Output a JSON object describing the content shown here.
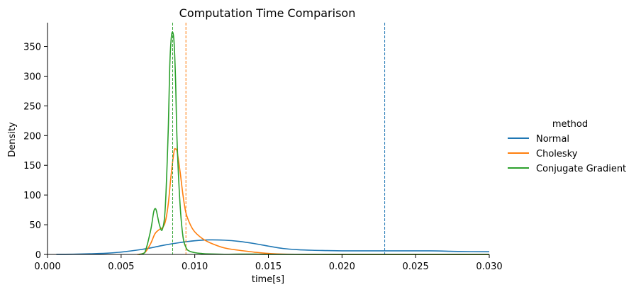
{
  "chart_data": {
    "type": "line",
    "title": "Computation Time Comparison",
    "xlabel": "time[s]",
    "ylabel": "Density",
    "xlim": [
      0.0,
      0.03
    ],
    "ylim": [
      0,
      390
    ],
    "xticks": [
      0.0,
      0.005,
      0.01,
      0.015,
      0.02,
      0.025,
      0.03
    ],
    "xtick_labels": [
      "0.000",
      "0.005",
      "0.010",
      "0.015",
      "0.020",
      "0.025",
      "0.030"
    ],
    "yticks": [
      0,
      50,
      100,
      150,
      200,
      250,
      300,
      350
    ],
    "ytick_labels": [
      "0",
      "50",
      "100",
      "150",
      "200",
      "250",
      "300",
      "350"
    ],
    "grid": false,
    "legend": {
      "title": "method",
      "placement": "right"
    },
    "series": [
      {
        "name": "Normal",
        "color": "#1f77b4",
        "mean": 0.0229,
        "x": [
          0.0006,
          0.002,
          0.004,
          0.005,
          0.006,
          0.007,
          0.008,
          0.009,
          0.01,
          0.011,
          0.012,
          0.013,
          0.014,
          0.015,
          0.016,
          0.017,
          0.018,
          0.019,
          0.02,
          0.022,
          0.024,
          0.026,
          0.028,
          0.03
        ],
        "y": [
          0.2,
          0.5,
          2,
          4,
          7,
          11,
          16,
          20,
          23,
          24.5,
          24,
          22,
          18.5,
          14,
          10,
          8,
          7,
          6.5,
          6,
          6,
          6,
          6,
          5,
          4.5
        ]
      },
      {
        "name": "Cholesky",
        "color": "#ff7f0e",
        "mean": 0.0094,
        "x": [
          0.0061,
          0.0066,
          0.007,
          0.0073,
          0.0076,
          0.0078,
          0.008,
          0.0082,
          0.0084,
          0.0086,
          0.0087,
          0.0088,
          0.009,
          0.0092,
          0.0094,
          0.0097,
          0.01,
          0.0105,
          0.011,
          0.012,
          0.013,
          0.014,
          0.0148,
          0.016,
          0.018,
          0.02,
          0.025,
          0.03
        ],
        "y": [
          0,
          3,
          18,
          35,
          42,
          45,
          55,
          85,
          135,
          174,
          177,
          173,
          140,
          100,
          70,
          50,
          38,
          27,
          20,
          11,
          7,
          4,
          2,
          0.6,
          0.2,
          0.1,
          0.05,
          0.02
        ]
      },
      {
        "name": "Conjugate Gradient",
        "color": "#2ca02c",
        "mean": 0.0085,
        "x": [
          0.0062,
          0.0066,
          0.007,
          0.0072,
          0.0073,
          0.0074,
          0.0076,
          0.0078,
          0.008,
          0.0082,
          0.0083,
          0.0084,
          0.0085,
          0.0086,
          0.0087,
          0.0088,
          0.009,
          0.0092,
          0.0094,
          0.0096,
          0.01,
          0.0105,
          0.011,
          0.012,
          0.013,
          0.014,
          0.015,
          0.02,
          0.03
        ],
        "y": [
          0,
          3,
          40,
          70,
          77,
          73,
          50,
          42,
          80,
          210,
          315,
          363,
          374,
          355,
          290,
          190,
          85,
          30,
          12,
          6,
          3,
          1.5,
          0.8,
          0.3,
          0.5,
          0.6,
          0.2,
          0.05,
          0.02
        ]
      }
    ]
  }
}
